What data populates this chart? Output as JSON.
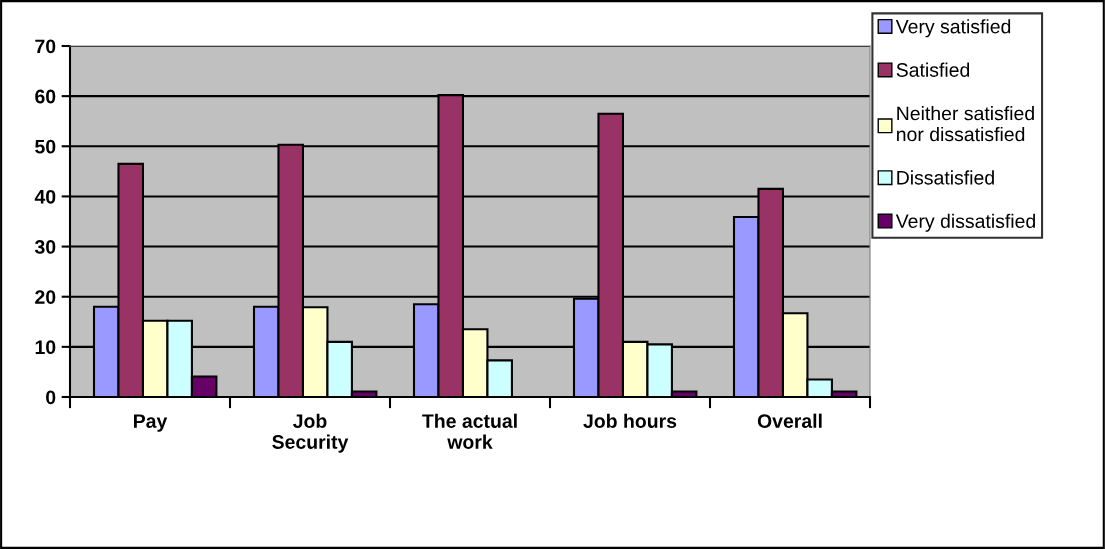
{
  "chart_data": {
    "type": "bar",
    "categories": [
      "Pay",
      "Job\nSecurity",
      "The actual\nwork",
      "Job hours",
      "Overall"
    ],
    "series": [
      {
        "name": "Very satisfied",
        "color": "#9999ff",
        "values": [
          18,
          18,
          18.5,
          19.6,
          35.9
        ]
      },
      {
        "name": "Satisfied",
        "color": "#993366",
        "values": [
          46.5,
          50.3,
          60.2,
          56.5,
          41.5
        ]
      },
      {
        "name": "Neither satisfied\nnor dissatisfied",
        "color": "#ffffcc",
        "values": [
          15.2,
          17.9,
          13.5,
          11,
          16.7
        ]
      },
      {
        "name": "Dissatisfied",
        "color": "#ccffff",
        "values": [
          15.2,
          11,
          7.3,
          10.5,
          3.5
        ]
      },
      {
        "name": "Very dissatisfied",
        "color": "#660066",
        "values": [
          4.1,
          1.1,
          null,
          1.1,
          1.1
        ]
      }
    ],
    "ylim": [
      0,
      70
    ],
    "yticks": [
      0,
      10,
      20,
      30,
      40,
      50,
      60,
      70
    ],
    "grid": "y",
    "legend": "right"
  }
}
